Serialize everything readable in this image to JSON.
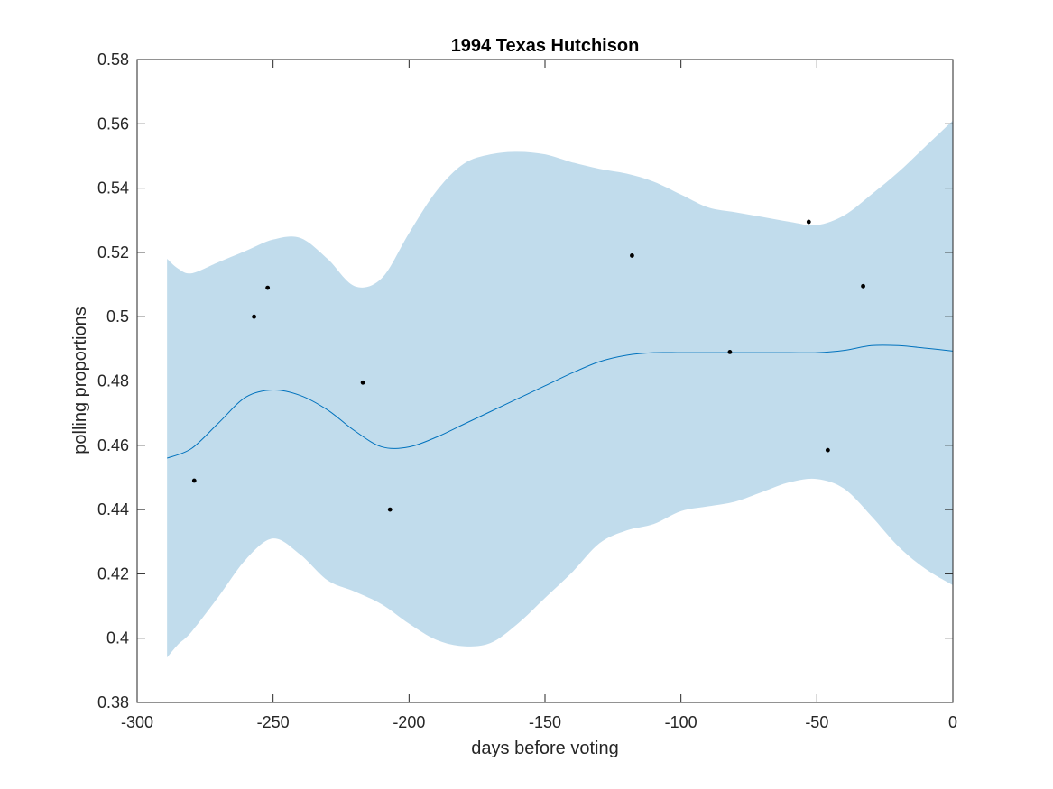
{
  "chart_data": {
    "type": "line",
    "title": "1994 Texas Hutchison",
    "xlabel": "days before voting",
    "ylabel": "polling proportions",
    "xlim": [
      -300,
      0
    ],
    "ylim": [
      0.38,
      0.58
    ],
    "x_ticks": [
      -300,
      -250,
      -200,
      -150,
      -100,
      -50,
      0
    ],
    "x_tick_labels": [
      "-300",
      "-250",
      "-200",
      "-150",
      "-100",
      "-50",
      "0"
    ],
    "y_ticks": [
      0.38,
      0.4,
      0.42,
      0.44,
      0.46,
      0.48,
      0.5,
      0.52,
      0.54,
      0.56,
      0.58
    ],
    "y_tick_labels": [
      "0.38",
      "0.4",
      "0.42",
      "0.44",
      "0.46",
      "0.48",
      "0.5",
      "0.52",
      "0.54",
      "0.56",
      "0.58"
    ],
    "grid": false,
    "colors": {
      "band": "#c1dcec",
      "line": "#0072bd",
      "points": "#000000",
      "axes": "#262626"
    },
    "mean_curve": {
      "x": [
        -289,
        -280,
        -270,
        -260,
        -250,
        -240,
        -230,
        -220,
        -210,
        -200,
        -190,
        -180,
        -170,
        -160,
        -150,
        -140,
        -130,
        -120,
        -110,
        -100,
        -90,
        -80,
        -70,
        -60,
        -50,
        -40,
        -30,
        -20,
        -10,
        0
      ],
      "y": [
        0.456,
        0.459,
        0.467,
        0.475,
        0.4772,
        0.4755,
        0.471,
        0.4645,
        0.4595,
        0.4595,
        0.4625,
        0.4665,
        0.4705,
        0.4745,
        0.4785,
        0.4825,
        0.486,
        0.488,
        0.4888,
        0.4888,
        0.4888,
        0.4888,
        0.4888,
        0.4888,
        0.4888,
        0.4895,
        0.491,
        0.491,
        0.4902,
        0.4893
      ]
    },
    "confidence_band": {
      "x": [
        -289,
        -285,
        -280,
        -270,
        -260,
        -250,
        -240,
        -230,
        -220,
        -210,
        -200,
        -190,
        -180,
        -170,
        -160,
        -150,
        -140,
        -130,
        -120,
        -110,
        -100,
        -90,
        -80,
        -70,
        -60,
        -50,
        -40,
        -30,
        -20,
        -10,
        0
      ],
      "upper": [
        0.518,
        0.515,
        0.5135,
        0.517,
        0.5205,
        0.524,
        0.5245,
        0.518,
        0.5095,
        0.512,
        0.526,
        0.539,
        0.5475,
        0.5505,
        0.5513,
        0.5505,
        0.548,
        0.546,
        0.5445,
        0.542,
        0.538,
        0.534,
        0.5325,
        0.531,
        0.5295,
        0.5285,
        0.5315,
        0.538,
        0.545,
        0.553,
        0.561
      ],
      "lower": [
        0.394,
        0.398,
        0.402,
        0.413,
        0.4245,
        0.431,
        0.426,
        0.418,
        0.4145,
        0.4105,
        0.4045,
        0.3995,
        0.3975,
        0.3985,
        0.4045,
        0.4125,
        0.4205,
        0.4295,
        0.4335,
        0.4355,
        0.4395,
        0.441,
        0.4425,
        0.4455,
        0.4485,
        0.4495,
        0.4465,
        0.438,
        0.4285,
        0.4215,
        0.4165
      ]
    },
    "poll_points": {
      "x": [
        -279,
        -257,
        -252,
        -217,
        -207,
        -118,
        -82,
        -53,
        -46,
        -33
      ],
      "y": [
        0.449,
        0.5,
        0.509,
        0.4795,
        0.44,
        0.519,
        0.489,
        0.5295,
        0.4585,
        0.5095
      ]
    }
  }
}
